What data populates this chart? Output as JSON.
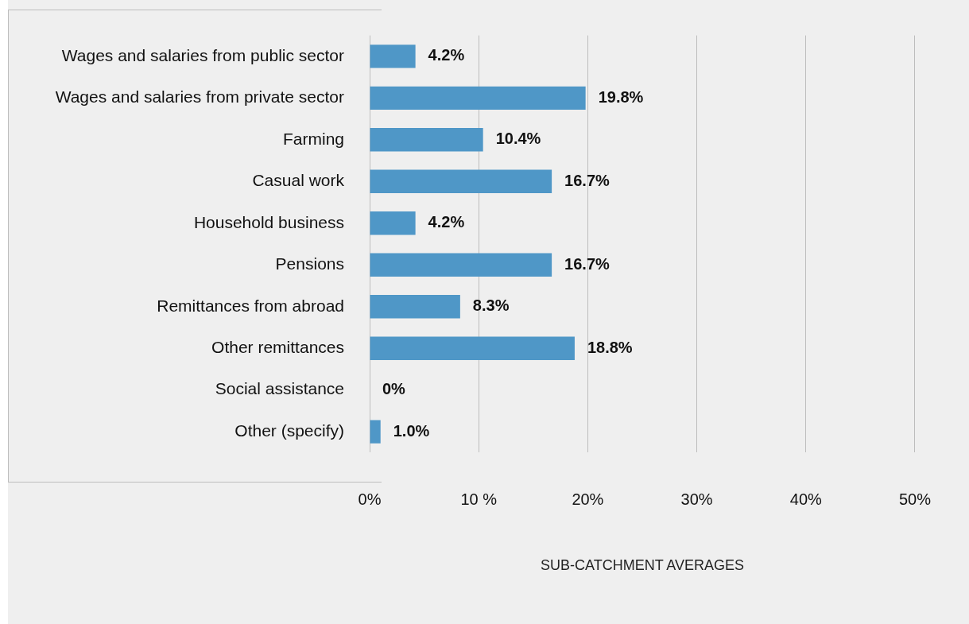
{
  "chart_data": {
    "type": "bar",
    "orientation": "horizontal",
    "xlabel": "SUB-CATCHMENT AVERAGES",
    "categories": [
      "Wages and salaries from public sector",
      "Wages and salaries from private sector",
      "Farming",
      "Casual work",
      "Household business",
      "Pensions",
      "Remittances from abroad",
      "Other remittances",
      "Social assistance",
      "Other (specify)"
    ],
    "values": [
      4.2,
      19.8,
      10.4,
      16.7,
      4.2,
      16.7,
      8.3,
      18.8,
      0,
      1.0
    ],
    "value_labels": [
      "4.2%",
      "19.8%",
      "10.4%",
      "16.7%",
      "4.2%",
      "16.7%",
      "8.3%",
      "18.8%",
      "0%",
      "1.0%"
    ],
    "color": "#4f97c7",
    "xlim": [
      0,
      50
    ],
    "xticks": [
      {
        "value": 0,
        "label": "0%"
      },
      {
        "value": 10,
        "label": "10 %"
      },
      {
        "value": 20,
        "label": "20%"
      },
      {
        "value": 30,
        "label": "30%"
      },
      {
        "value": 40,
        "label": "40%"
      },
      {
        "value": 50,
        "label": "50%"
      }
    ],
    "grid": "x",
    "legend": false
  }
}
